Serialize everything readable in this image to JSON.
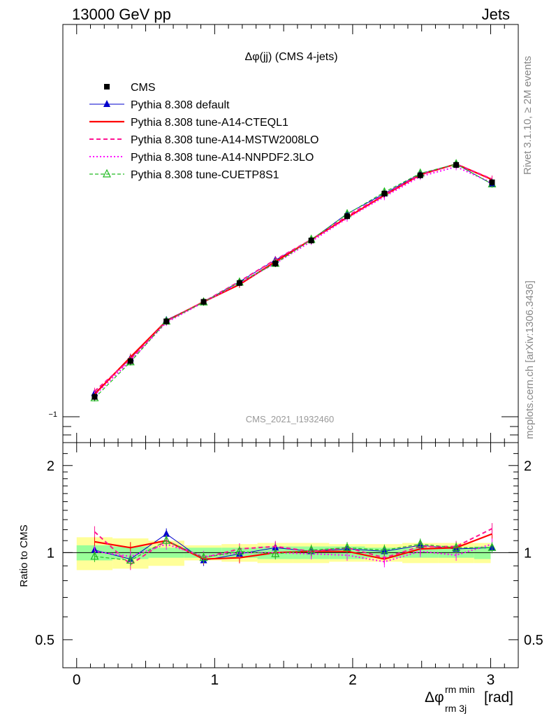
{
  "header": {
    "energy_label": "13000 GeV pp",
    "category_label": "Jets",
    "rivet_label": "Rivet 3.1.10, ≥ 2M events",
    "mcplots_label": "mcplots.cern.ch [arXiv:1306.3436]",
    "analysis_id": "CMS_2021_I1932460"
  },
  "chart_data": [
    {
      "type": "line",
      "title": "Δφ(jj) (CMS 4-jets)",
      "xlabel": "",
      "ylabel": "",
      "xlim": [
        -0.1,
        3.2
      ],
      "ytick_labels": [
        "−1"
      ],
      "log_y": true,
      "legend_position": "top-left",
      "x": [
        0.13,
        0.39,
        0.65,
        0.92,
        1.18,
        1.44,
        1.7,
        1.96,
        2.23,
        2.49,
        2.75,
        3.01
      ],
      "series": [
        {
          "name": "CMS",
          "marker": "filled-square",
          "color": "#000000",
          "values": [
            0.124,
            0.32,
            0.538,
            0.645,
            0.748,
            0.855,
            0.981,
            1.114,
            1.238,
            1.338,
            1.395,
            1.3
          ]
        },
        {
          "name": "Pythia 8.308 default",
          "marker": "filled-triangle",
          "color": "#0000cc",
          "values": [
            0.144,
            0.335,
            0.545,
            0.645,
            0.755,
            0.874,
            0.984,
            1.128,
            1.238,
            1.347,
            1.4,
            1.29
          ]
        },
        {
          "name": "Pythia 8.308 tune-A14-CTEQL1",
          "marker": "none",
          "color": "#ff0000",
          "values": [
            0.139,
            0.342,
            0.54,
            0.645,
            0.74,
            0.865,
            0.986,
            1.107,
            1.229,
            1.341,
            1.4,
            1.315
          ]
        },
        {
          "name": "Pythia 8.308 tune-A14-MSTW2008LO",
          "marker": "none",
          "color": "#ff1493",
          "values": [
            0.155,
            0.33,
            0.538,
            0.645,
            0.757,
            0.876,
            0.986,
            1.115,
            1.233,
            1.343,
            1.4,
            1.318
          ]
        },
        {
          "name": "Pythia 8.308 tune-A14-NNPDF2.3LO",
          "marker": "none",
          "color": "#ff00ff",
          "values": [
            0.133,
            0.323,
            0.532,
            0.643,
            0.748,
            0.856,
            0.976,
            1.103,
            1.221,
            1.332,
            1.385,
            1.297
          ]
        },
        {
          "name": "Pythia 8.308 tune-CUETP8S1",
          "marker": "open-triangle",
          "color": "#22bb22",
          "values": [
            0.118,
            0.315,
            0.538,
            0.643,
            0.752,
            0.855,
            0.986,
            1.126,
            1.246,
            1.349,
            1.4,
            1.29
          ]
        }
      ]
    },
    {
      "type": "line",
      "ylabel": "Ratio to CMS",
      "xlabel": "Δφ",
      "xlabel_sup": "rm min",
      "xlabel_sub": "rm 3j",
      "xlabel_unit": "[rad]",
      "xlim": [
        -0.1,
        3.2
      ],
      "ylim": [
        0.4,
        2.4
      ],
      "log_y": true,
      "xticks": [
        0,
        1,
        2,
        3
      ],
      "xtick_labels": [
        "0",
        "1",
        "2",
        "3"
      ],
      "yticks": [
        0.5,
        1,
        2
      ],
      "ytick_labels": [
        "0.5",
        "1",
        "2"
      ],
      "x_edges": [
        0.0,
        0.26,
        0.52,
        0.78,
        1.05,
        1.31,
        1.57,
        1.83,
        2.09,
        2.36,
        2.62,
        2.88,
        3.0
      ],
      "band_green_halfwidth": [
        0.06,
        0.05,
        0.04,
        0.04,
        0.04,
        0.05,
        0.05,
        0.05,
        0.04,
        0.04,
        0.04,
        0.05
      ],
      "band_yellow_halfwidth": [
        0.13,
        0.12,
        0.1,
        0.06,
        0.07,
        0.08,
        0.08,
        0.07,
        0.07,
        0.08,
        0.08,
        0.08
      ],
      "x": [
        0.13,
        0.39,
        0.65,
        0.92,
        1.18,
        1.44,
        1.7,
        1.96,
        2.23,
        2.49,
        2.75,
        3.01
      ],
      "series": [
        {
          "name": "Pythia 8.308 default",
          "color": "#0000cc",
          "values": [
            1.02,
            0.95,
            1.16,
            0.94,
            0.99,
            1.04,
            1.01,
            1.03,
            1.01,
            1.06,
            1.03,
            1.04
          ]
        },
        {
          "name": "Pythia 8.308 tune-A14-CTEQL1",
          "color": "#ff0000",
          "values": [
            1.09,
            1.04,
            1.1,
            0.95,
            0.96,
            1.0,
            1.01,
            1.01,
            0.95,
            1.03,
            1.04,
            1.16
          ]
        },
        {
          "name": "Pythia 8.308 tune-A14-MSTW2008LO",
          "color": "#ff1493",
          "values": [
            1.18,
            0.91,
            1.1,
            0.96,
            1.03,
            1.05,
            1.01,
            1.04,
            0.96,
            1.05,
            1.05,
            1.21
          ]
        },
        {
          "name": "Pythia 8.308 tune-A14-NNPDF2.3LO",
          "color": "#ff00ff",
          "values": [
            1.01,
            0.97,
            1.07,
            0.97,
            1.0,
            1.0,
            0.99,
            0.98,
            0.93,
            1.01,
            0.98,
            1.07
          ]
        },
        {
          "name": "Pythia 8.308 tune-CUETP8S1",
          "color": "#22bb22",
          "values": [
            0.97,
            0.94,
            1.1,
            0.96,
            1.01,
            0.99,
            1.02,
            1.04,
            1.02,
            1.07,
            1.04,
            1.04
          ]
        }
      ]
    }
  ]
}
